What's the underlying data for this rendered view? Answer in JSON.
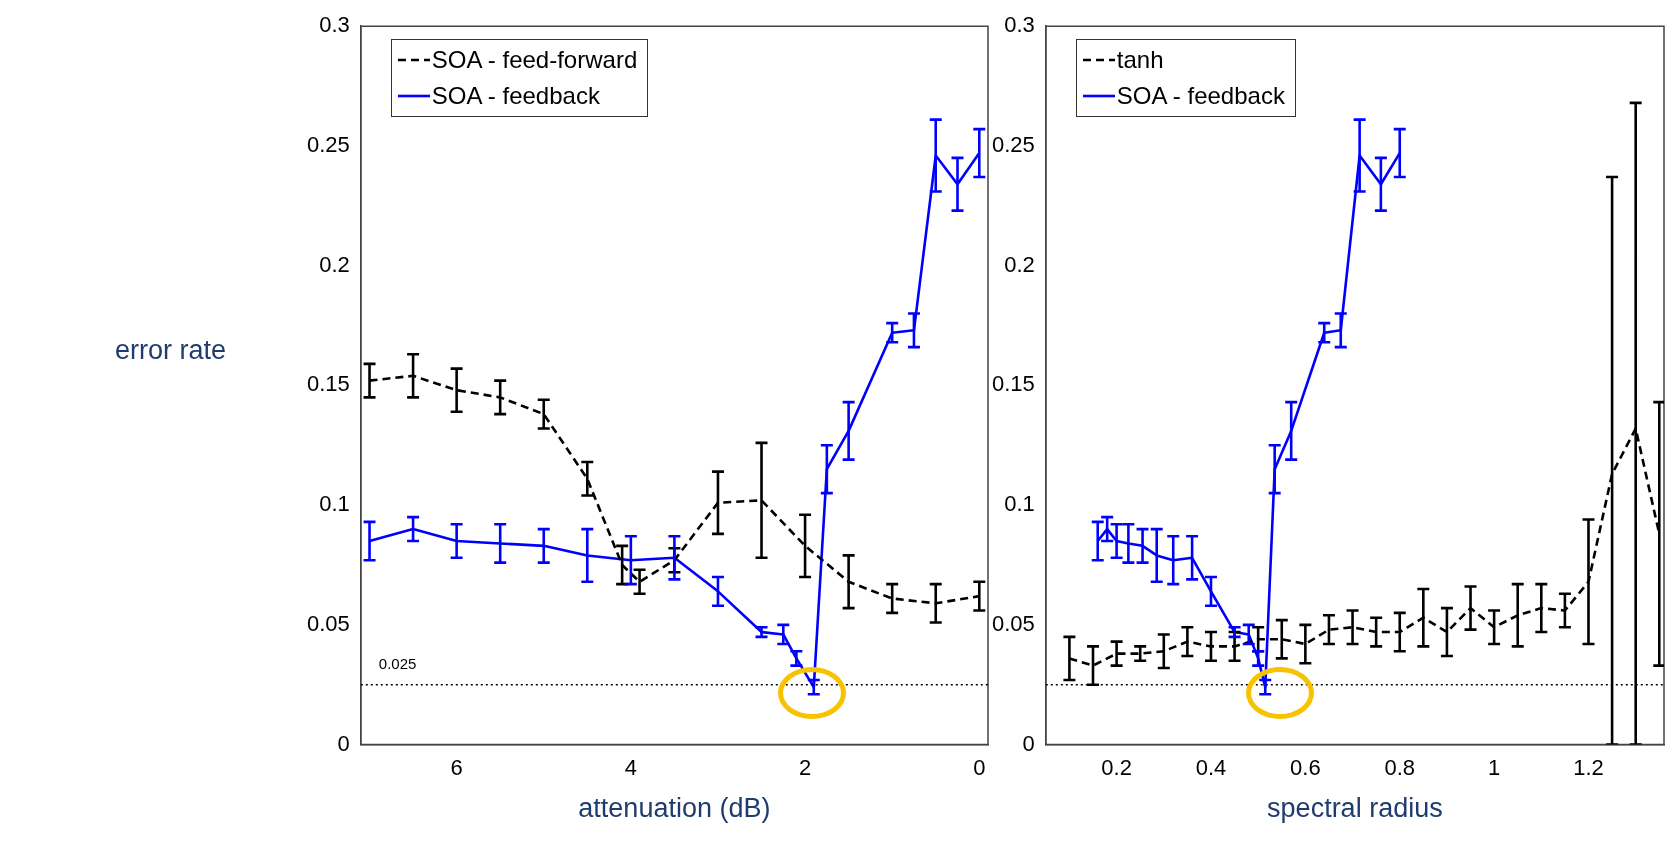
{
  "chart_data": [
    {
      "type": "line",
      "xlabel": "attenuation (dB)",
      "ylabel": "error rate",
      "xlim": [
        7.1,
        -0.1
      ],
      "xticks": [
        0,
        2,
        4,
        6
      ],
      "ylim": [
        0,
        0.3
      ],
      "yticks": [
        0,
        0.05,
        0.1,
        0.15,
        0.2,
        0.25,
        0.3
      ],
      "grid": false,
      "legend": "top left",
      "ref_lines": [
        {
          "axis": "y",
          "value": 0.025,
          "label": "0.025",
          "line_style": "dotted",
          "color": "#000000"
        }
      ],
      "series": [
        {
          "name": "SOA - feed-forward",
          "color": "#000000",
          "line_style": "dashed",
          "x": [
            7,
            6.5,
            6,
            5.5,
            5,
            4.5,
            4.1,
            3.9,
            3.5,
            3,
            2.5,
            2,
            1.5,
            1,
            0.5,
            0
          ],
          "values": [
            0.152,
            0.154,
            0.148,
            0.145,
            0.138,
            0.111,
            0.075,
            0.068,
            0.077,
            0.101,
            0.102,
            0.083,
            0.068,
            0.061,
            0.059,
            0.062
          ],
          "errors": [
            0.007,
            0.009,
            0.009,
            0.007,
            0.006,
            0.007,
            0.008,
            0.005,
            0.005,
            0.013,
            0.024,
            0.013,
            0.011,
            0.006,
            0.008,
            0.006
          ]
        },
        {
          "name": "SOA - feedback",
          "color": "#0000ff",
          "line_style": "solid",
          "x": [
            7,
            6.5,
            6,
            5.5,
            5,
            4.5,
            4,
            3.5,
            3,
            2.5,
            2.25,
            2.1,
            1.9,
            1.75,
            1.5,
            1,
            0.75,
            0.5,
            0.25,
            0
          ],
          "values": [
            0.085,
            0.09,
            0.085,
            0.084,
            0.083,
            0.079,
            0.077,
            0.078,
            0.064,
            0.047,
            0.046,
            0.036,
            0.024,
            0.115,
            0.131,
            0.172,
            0.173,
            0.246,
            0.234,
            0.247
          ],
          "errors": [
            0.008,
            0.005,
            0.007,
            0.008,
            0.007,
            0.011,
            0.01,
            0.009,
            0.006,
            0.002,
            0.004,
            0.003,
            0.003,
            0.01,
            0.012,
            0.004,
            0.007,
            0.015,
            0.011,
            0.01
          ]
        }
      ]
    },
    {
      "type": "line",
      "xlabel": "spectral radius",
      "xlim": [
        0.05,
        1.36
      ],
      "xticks": [
        0.2,
        0.4,
        0.6,
        0.8,
        1,
        1.2
      ],
      "ylim": [
        0,
        0.3
      ],
      "yticks": [
        0,
        0.05,
        0.1,
        0.15,
        0.2,
        0.25,
        0.3
      ],
      "grid": false,
      "legend": "top left",
      "ref_lines": [
        {
          "axis": "y",
          "value": 0.025,
          "line_style": "dotted",
          "color": "#000000"
        }
      ],
      "series": [
        {
          "name": "tanh",
          "color": "#000000",
          "line_style": "dashed",
          "x": [
            0.1,
            0.15,
            0.2,
            0.25,
            0.3,
            0.35,
            0.4,
            0.45,
            0.5,
            0.55,
            0.6,
            0.65,
            0.7,
            0.75,
            0.8,
            0.85,
            0.9,
            0.95,
            1,
            1.05,
            1.1,
            1.15,
            1.2,
            1.25,
            1.3,
            1.35
          ],
          "values": [
            0.036,
            0.033,
            0.038,
            0.038,
            0.039,
            0.043,
            0.041,
            0.041,
            0.044,
            0.044,
            0.042,
            0.048,
            0.049,
            0.047,
            0.047,
            0.053,
            0.047,
            0.057,
            0.049,
            0.054,
            0.057,
            0.056,
            0.068,
            0.113,
            0.132,
            0.088
          ],
          "errors": [
            0.009,
            0.008,
            0.005,
            0.003,
            0.007,
            0.006,
            0.006,
            0.006,
            0.005,
            0.008,
            0.008,
            0.006,
            0.007,
            0.006,
            0.008,
            0.012,
            0.01,
            0.009,
            0.007,
            0.013,
            0.01,
            0.007,
            0.026,
            [
              0,
              0.237
            ],
            [
              0,
              0.268
            ],
            0.055
          ]
        },
        {
          "name": "SOA - feedback",
          "color": "#0000ff",
          "line_style": "solid",
          "x": [
            0.16,
            0.18,
            0.2,
            0.225,
            0.255,
            0.285,
            0.32,
            0.36,
            0.4,
            0.45,
            0.48,
            0.5,
            0.515,
            0.535,
            0.57,
            0.64,
            0.675,
            0.715,
            0.76,
            0.8
          ],
          "values": [
            0.085,
            0.09,
            0.085,
            0.084,
            0.083,
            0.079,
            0.077,
            0.078,
            0.064,
            0.047,
            0.046,
            0.036,
            0.024,
            0.115,
            0.131,
            0.172,
            0.173,
            0.246,
            0.234,
            0.247
          ],
          "errors": [
            0.008,
            0.005,
            0.007,
            0.008,
            0.007,
            0.011,
            0.01,
            0.009,
            0.006,
            0.002,
            0.004,
            0.003,
            0.003,
            0.01,
            0.012,
            0.004,
            0.007,
            0.015,
            0.011,
            0.01
          ]
        }
      ]
    }
  ]
}
